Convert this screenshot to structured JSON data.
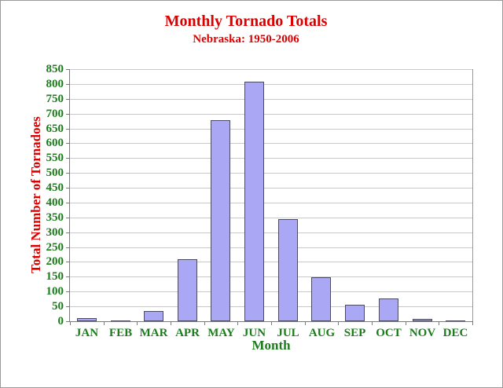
{
  "chart_data": {
    "type": "bar",
    "title": "Monthly Tornado Totals",
    "subtitle": "Nebraska: 1950-2006",
    "xlabel": "Month",
    "ylabel": "Total Number of Tornadoes",
    "categories": [
      "JAN",
      "FEB",
      "MAR",
      "APR",
      "MAY",
      "JUN",
      "JUL",
      "AUG",
      "SEP",
      "OCT",
      "NOV",
      "DEC"
    ],
    "values": [
      10,
      2,
      34,
      208,
      677,
      808,
      344,
      148,
      55,
      77,
      7,
      3
    ],
    "ylim": [
      0,
      850
    ],
    "ytick_step": 50,
    "ytick_labels": [
      "0",
      "50",
      "100",
      "150",
      "200",
      "250",
      "300",
      "350",
      "400",
      "450",
      "500",
      "550",
      "600",
      "650",
      "700",
      "750",
      "800",
      "850"
    ],
    "grid": true,
    "legend": "none",
    "colors": {
      "title_red": "#dd0000",
      "label_green": "#1c7c1c",
      "bar_fill": "#aaa8f4",
      "bar_border": "#4a4a63",
      "gridline": "#c9c9c9",
      "axis": "#7a7a7a"
    }
  }
}
